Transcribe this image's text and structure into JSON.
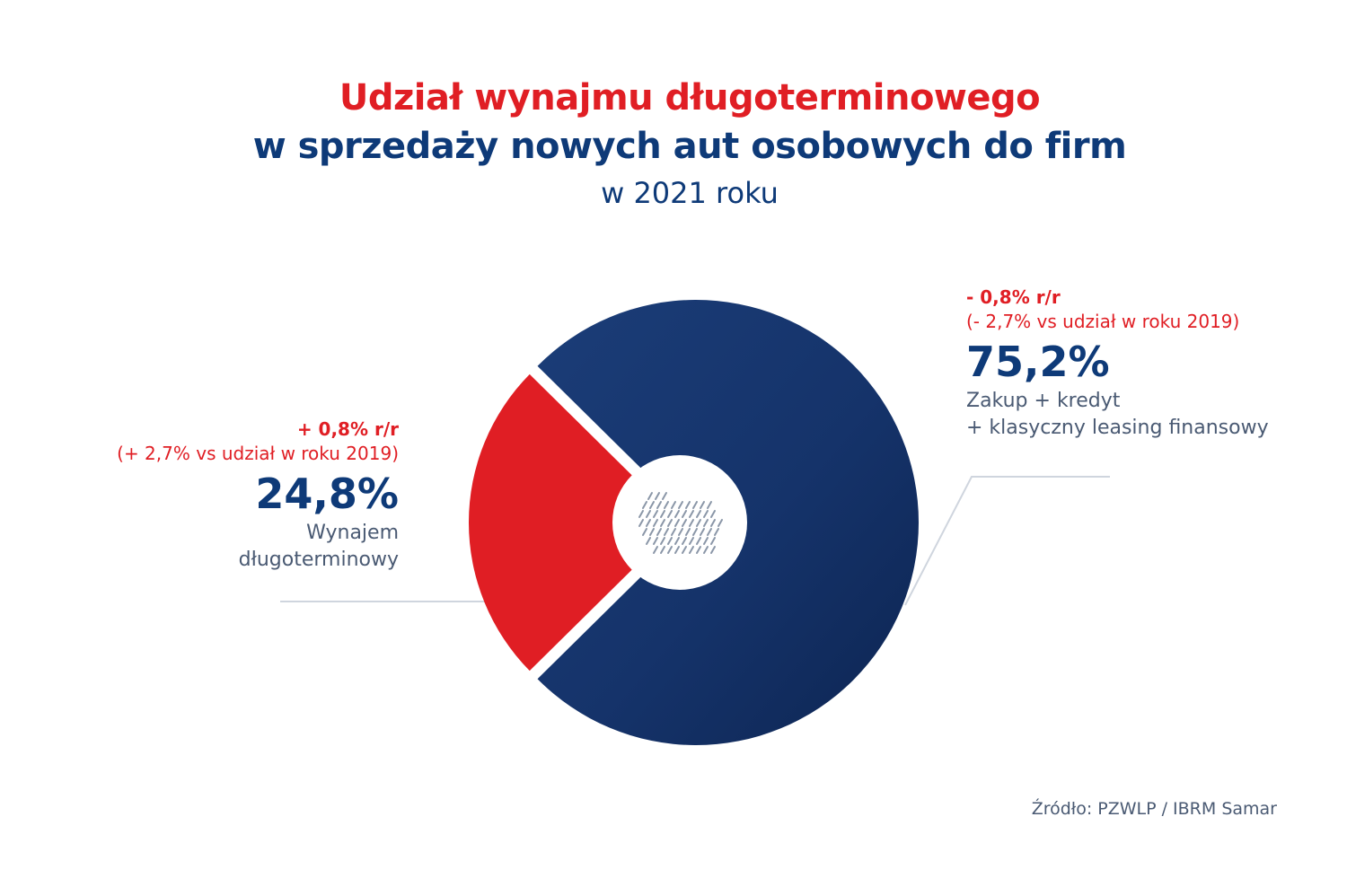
{
  "title": {
    "line1": "Udział wynajmu długoterminowego",
    "line2": "w sprzedaży nowych aut osobowych do firm",
    "line3": "w 2021 roku"
  },
  "chart_data": {
    "type": "pie",
    "style": "donut",
    "slices": [
      {
        "value": 24.8,
        "value_label": "24,8%",
        "label_lines": [
          "Wynajem",
          "długoterminowy"
        ],
        "change": "+ 0,8% r/r",
        "comparison": "(+ 2,7% vs udział w roku 2019)",
        "color": "#e01e24"
      },
      {
        "value": 75.2,
        "value_label": "75,2%",
        "label_lines": [
          "Zakup + kredyt",
          "+ klasyczny leasing finansowy"
        ],
        "change": "- 0,8% r/r",
        "comparison": "(- 2,7% vs udział w roku 2019)",
        "color": "#0e3a78"
      }
    ],
    "legend": "none"
  },
  "colors": {
    "accent_red": "#e01e24",
    "brand_blue": "#0e3a78",
    "text_gray": "#4a5a73",
    "leader_line": "#cfd5de"
  },
  "center_icon": "poland-map-icon",
  "source": "Źródło: PZWLP / IBRM Samar"
}
